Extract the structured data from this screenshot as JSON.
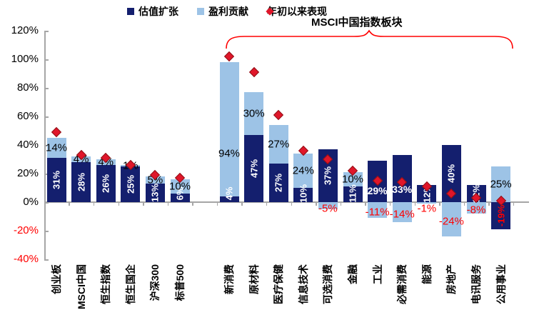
{
  "legend": {
    "items": [
      {
        "label": "估值扩张",
        "marker": "square",
        "color_key": "dark_navy"
      },
      {
        "label": "盈利贡献",
        "marker": "square",
        "color_key": "light_blue"
      },
      {
        "label": "年初以来表现",
        "marker": "diamond",
        "color_key": "marker_red"
      }
    ]
  },
  "annotation": {
    "text": "MSCI中国指数板块"
  },
  "colors": {
    "dark_navy": "#141f6e",
    "light_blue": "#9dc3e6",
    "marker_red": "#e0162a",
    "marker_red_border": "#8f1016",
    "label_red": "#ff0000",
    "axis_gray": "#a6a6a6",
    "text_black": "#000000",
    "bar_label_white": "#ffffff"
  },
  "chart_data": {
    "type": "bar",
    "subtype": "stacked-bars-with-diamond-markers",
    "unit": "%",
    "legend_position": "top",
    "grid": false,
    "y_axis": {
      "ticks": [
        120,
        100,
        80,
        60,
        40,
        20,
        0,
        -20,
        -40
      ],
      "min": -40,
      "max": 120,
      "unit": "%"
    },
    "series": [
      {
        "name": "估值扩张",
        "role": "dark"
      },
      {
        "name": "盈利贡献",
        "role": "light"
      },
      {
        "name": "年初以来表现",
        "role": "marker"
      }
    ],
    "groups": [
      {
        "items": [
          {
            "label": "创业板",
            "dark": 31,
            "light": 14,
            "ytd": 49
          },
          {
            "label": "MSCI中国",
            "dark": 28,
            "light": 4,
            "ytd": 33
          },
          {
            "label": "恒生指数",
            "dark": 26,
            "light": 4,
            "ytd": 31
          },
          {
            "label": "恒生国企",
            "dark": 25,
            "light": 1,
            "ytd": 26
          },
          {
            "label": "沪深300",
            "dark": 13,
            "light": 5,
            "ytd": 19
          },
          {
            "label": "标普500",
            "dark": 6,
            "light": 10,
            "ytd": 17
          }
        ]
      },
      {
        "annotation": "MSCI中国指数板块",
        "items": [
          {
            "label": "新消费",
            "dark": 4,
            "light": 94,
            "ytd": 102
          },
          {
            "label": "原材料",
            "dark": 47,
            "light": 30,
            "ytd": 91
          },
          {
            "label": "医疗保健",
            "dark": 27,
            "light": 27,
            "ytd": 61
          },
          {
            "label": "信息技术",
            "dark": 10,
            "light": 24,
            "ytd": 36
          },
          {
            "label": "可选消费",
            "dark": 37,
            "light": -5,
            "ytd": 30
          },
          {
            "label": "金融",
            "dark": 11,
            "light": 10,
            "ytd": 22
          },
          {
            "label": "工业",
            "dark": 29,
            "light": -11,
            "ytd": 15,
            "dark_horizontal": true
          },
          {
            "label": "必需消费",
            "dark": 33,
            "light": -14,
            "ytd": 14,
            "dark_horizontal": true
          },
          {
            "label": "能源",
            "dark": 12,
            "light": -1,
            "ytd": 11
          },
          {
            "label": "房地产",
            "dark": 40,
            "light": -24,
            "ytd": 6
          },
          {
            "label": "电讯服务",
            "dark": 12,
            "light": -8,
            "ytd": 3
          },
          {
            "label": "公用事业",
            "dark": -19,
            "light": 25,
            "ytd": 1
          }
        ]
      }
    ]
  }
}
